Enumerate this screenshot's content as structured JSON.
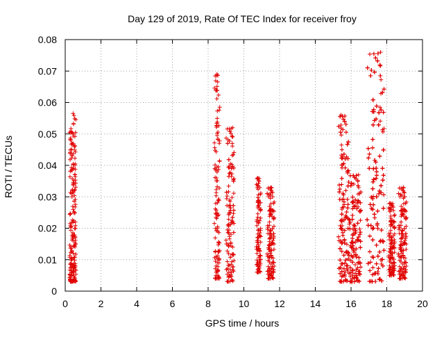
{
  "chart_data": {
    "type": "scatter",
    "title": "Day 129 of 2019, Rate Of TEC Index for receiver froy",
    "xlabel": "GPS time / hours",
    "ylabel": "ROTI / TECUs",
    "xlim": [
      0,
      20
    ],
    "ylim": [
      0,
      0.08
    ],
    "xticks": [
      0,
      2,
      4,
      6,
      8,
      10,
      12,
      14,
      16,
      18,
      20
    ],
    "xtick_labels": [
      "0",
      "2",
      "4",
      "6",
      "8",
      "10",
      "12",
      "14",
      "16",
      "18",
      "20"
    ],
    "yticks": [
      0,
      0.01,
      0.02,
      0.03,
      0.04,
      0.05,
      0.06,
      0.07,
      0.08
    ],
    "ytick_labels": [
      "0",
      "0.01",
      "0.02",
      "0.03",
      "0.04",
      "0.05",
      "0.06",
      "0.07",
      "0.08"
    ],
    "grid": true,
    "marker": "+",
    "marker_color": "#e00000",
    "series": [
      {
        "name": "ROTI",
        "clusters": [
          {
            "x_range": [
              0.25,
              0.6
            ],
            "y_range": [
              0.003,
              0.057
            ],
            "density": 200,
            "peak": [
              0.45,
              0.0565
            ]
          },
          {
            "x_range": [
              8.35,
              8.65
            ],
            "y_range": [
              0.004,
              0.069
            ],
            "density": 110,
            "peak": [
              8.5,
              0.069
            ]
          },
          {
            "x_range": [
              9.0,
              9.45
            ],
            "y_range": [
              0.003,
              0.052
            ],
            "density": 150,
            "peak": [
              9.35,
              0.052
            ]
          },
          {
            "x_range": [
              10.7,
              10.95
            ],
            "y_range": [
              0.006,
              0.036
            ],
            "density": 90,
            "peak": [
              10.8,
              0.036
            ]
          },
          {
            "x_range": [
              11.3,
              11.7
            ],
            "y_range": [
              0.004,
              0.033
            ],
            "density": 140,
            "peak": [
              11.5,
              0.033
            ]
          },
          {
            "x_range": [
              15.3,
              15.85
            ],
            "y_range": [
              0.003,
              0.056
            ],
            "density": 260,
            "peak": [
              15.45,
              0.056
            ]
          },
          {
            "x_range": [
              15.85,
              16.55
            ],
            "y_range": [
              0.003,
              0.037
            ],
            "density": 300,
            "peak": [
              16.4,
              0.037
            ]
          },
          {
            "x_range": [
              16.9,
              17.85
            ],
            "y_range": [
              0.003,
              0.076
            ],
            "density": 380,
            "peak": [
              17.65,
              0.076
            ]
          },
          {
            "x_range": [
              18.1,
              18.45
            ],
            "y_range": [
              0.005,
              0.028
            ],
            "density": 110,
            "peak": [
              18.2,
              0.028
            ]
          },
          {
            "x_range": [
              18.65,
              19.1
            ],
            "y_range": [
              0.004,
              0.033
            ],
            "density": 150,
            "peak": [
              18.95,
              0.033
            ]
          }
        ]
      }
    ]
  }
}
